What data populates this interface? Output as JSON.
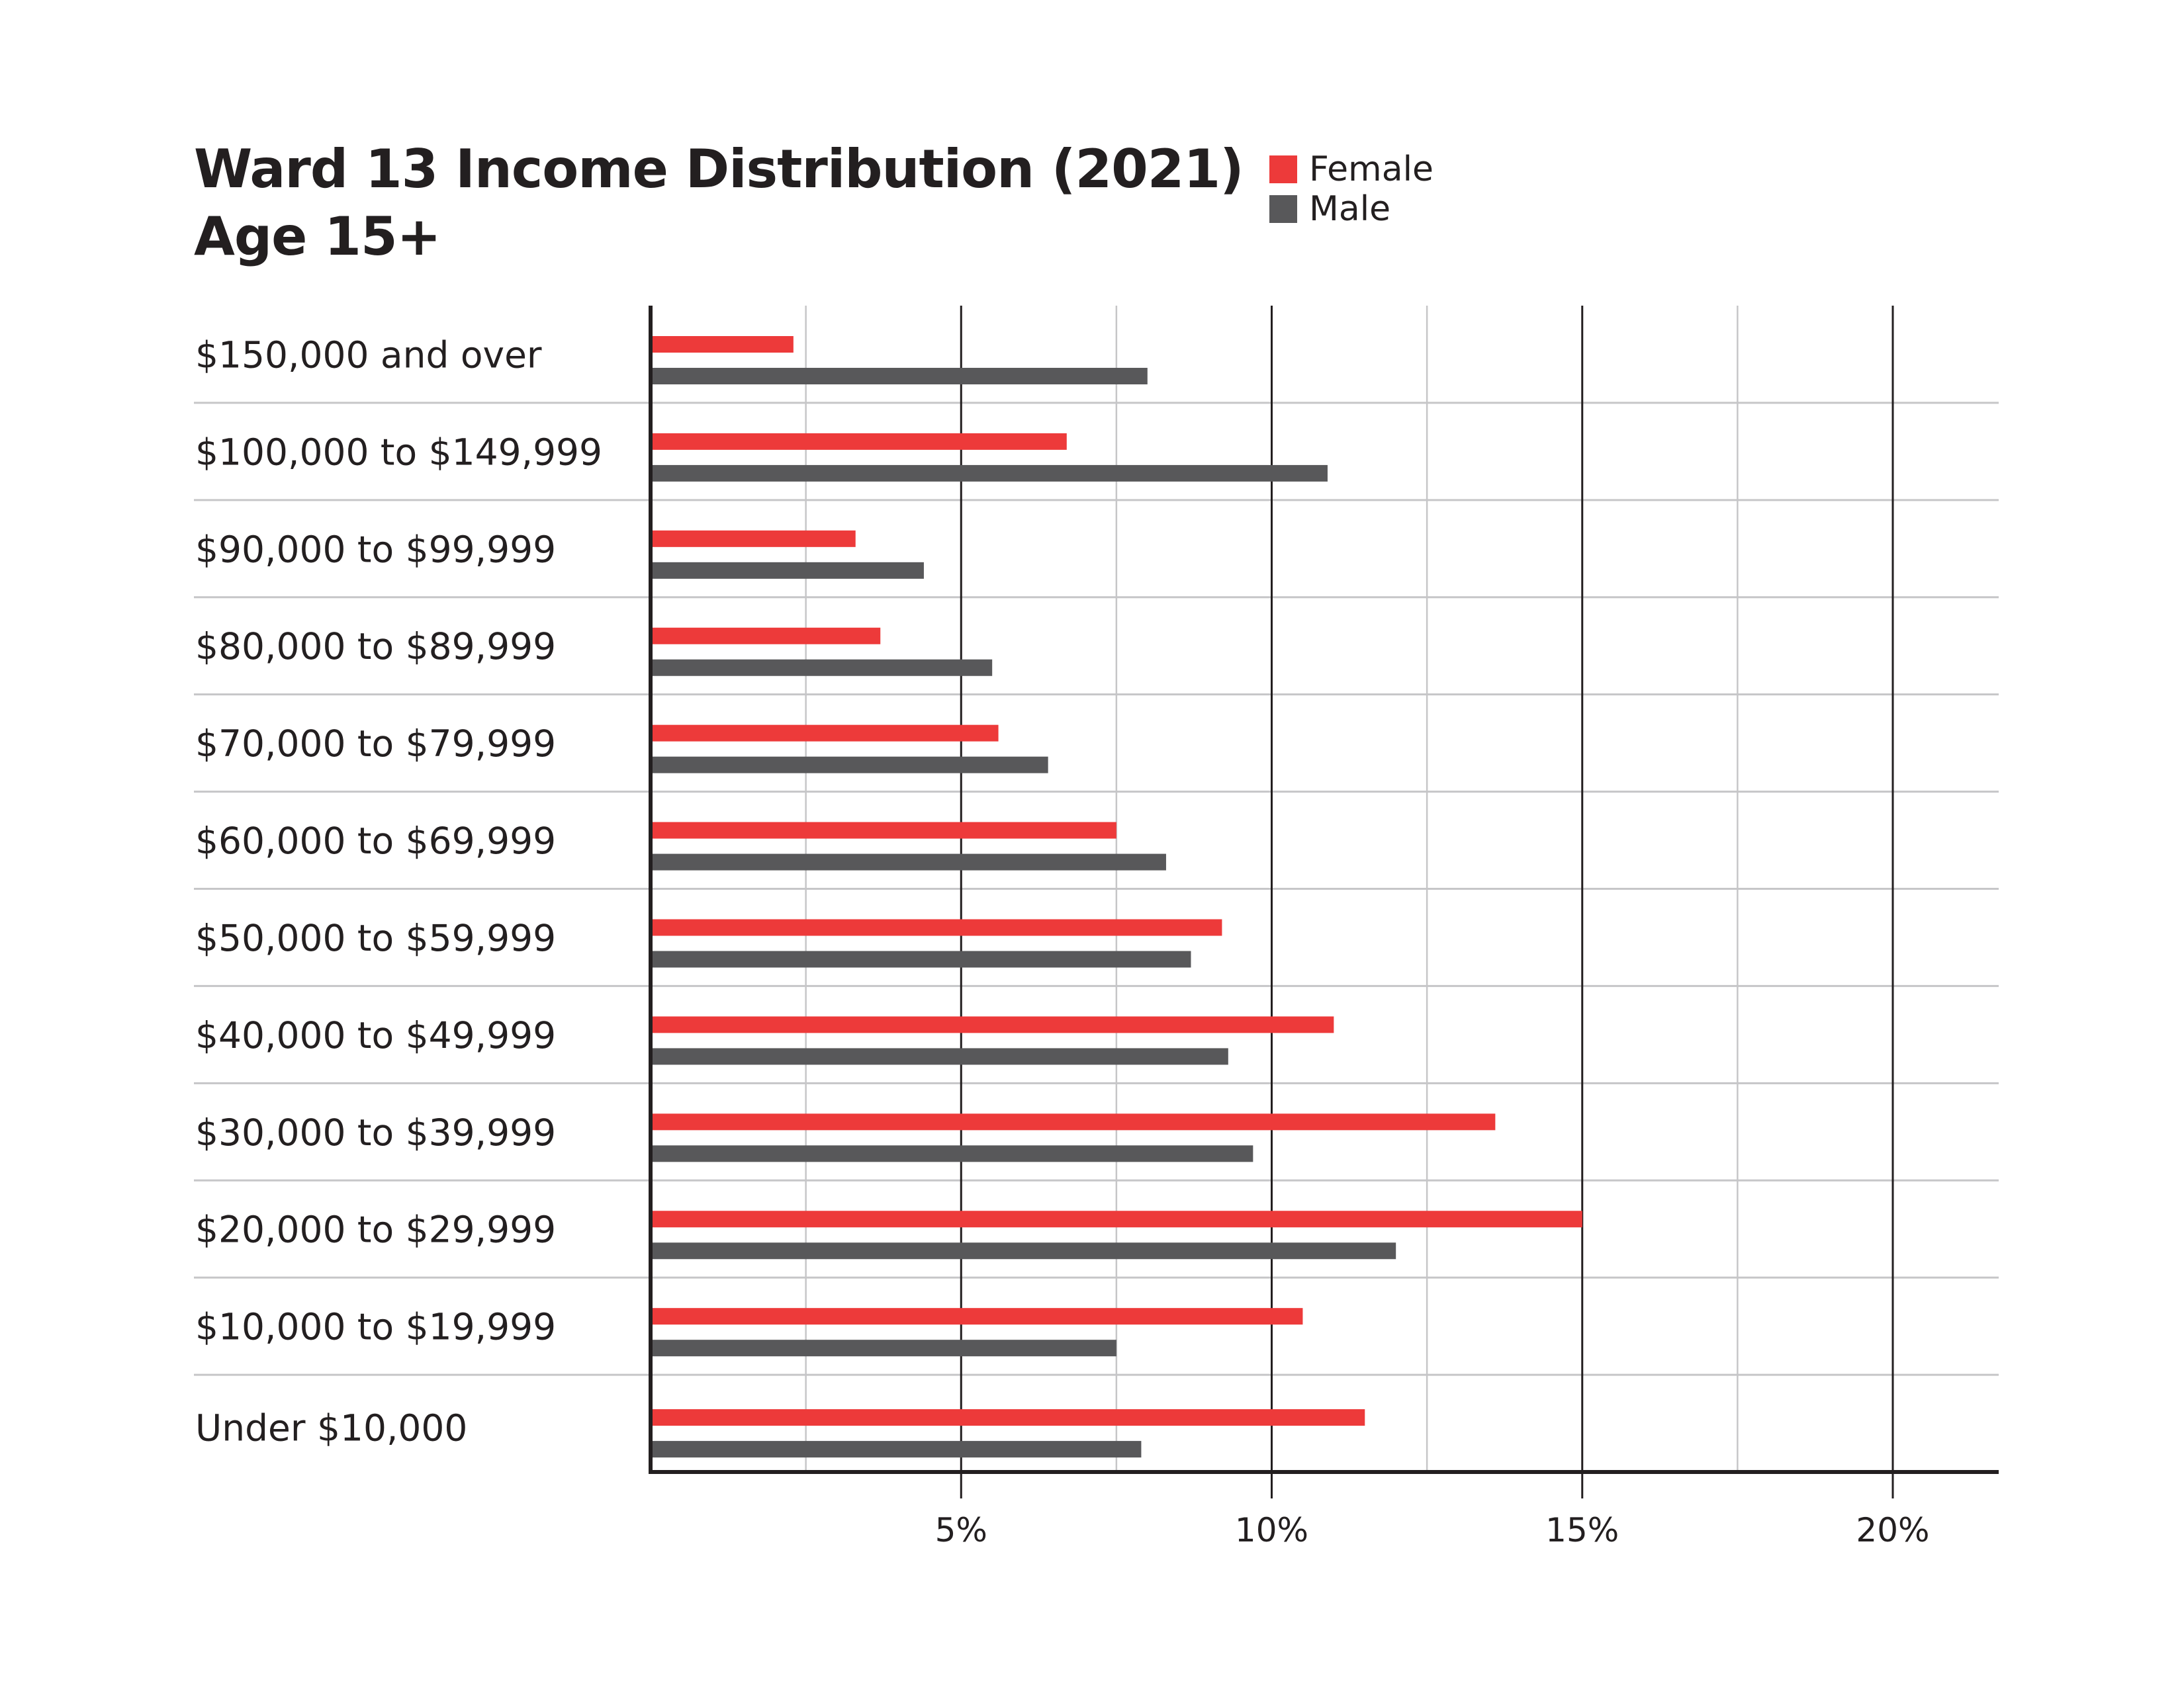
{
  "colors": {
    "female": "#ed3a3a",
    "male": "#58585a",
    "axis": "#231f20",
    "grid_major": "#231f20",
    "grid_minor": "#c6c6c8"
  },
  "chart_data": {
    "type": "bar",
    "orientation": "horizontal",
    "title": "Ward 13 Income Distribution (2021)",
    "subtitle": "Age 15+",
    "xlabel": "",
    "ylabel": "",
    "xlim": [
      0,
      21.6
    ],
    "x_ticks": [
      5,
      10,
      15,
      20
    ],
    "x_tick_labels": [
      "5%",
      "10%",
      "15%",
      "20%"
    ],
    "minor_grid_step": 2.5,
    "grid": true,
    "legend_position": "top-right",
    "categories": [
      "$150,000 and over",
      "$100,000 to $149,999",
      "$90,000 to $99,999",
      "$80,000 to $89,999",
      "$70,000 to $79,999",
      "$60,000 to $69,999",
      "$50,000 to $59,999",
      "$40,000 to $49,999",
      "$30,000 to $39,999",
      "$20,000 to $29,999",
      "$10,000 to $19,999",
      "Under $10,000"
    ],
    "series": [
      {
        "name": "Female",
        "values": [
          2.3,
          6.7,
          3.3,
          3.7,
          5.6,
          7.5,
          9.2,
          11.0,
          13.6,
          15.0,
          10.5,
          11.5
        ]
      },
      {
        "name": "Male",
        "values": [
          8.0,
          10.9,
          4.4,
          5.5,
          6.4,
          8.3,
          8.7,
          9.3,
          9.7,
          12.0,
          7.5,
          7.9
        ]
      }
    ]
  }
}
